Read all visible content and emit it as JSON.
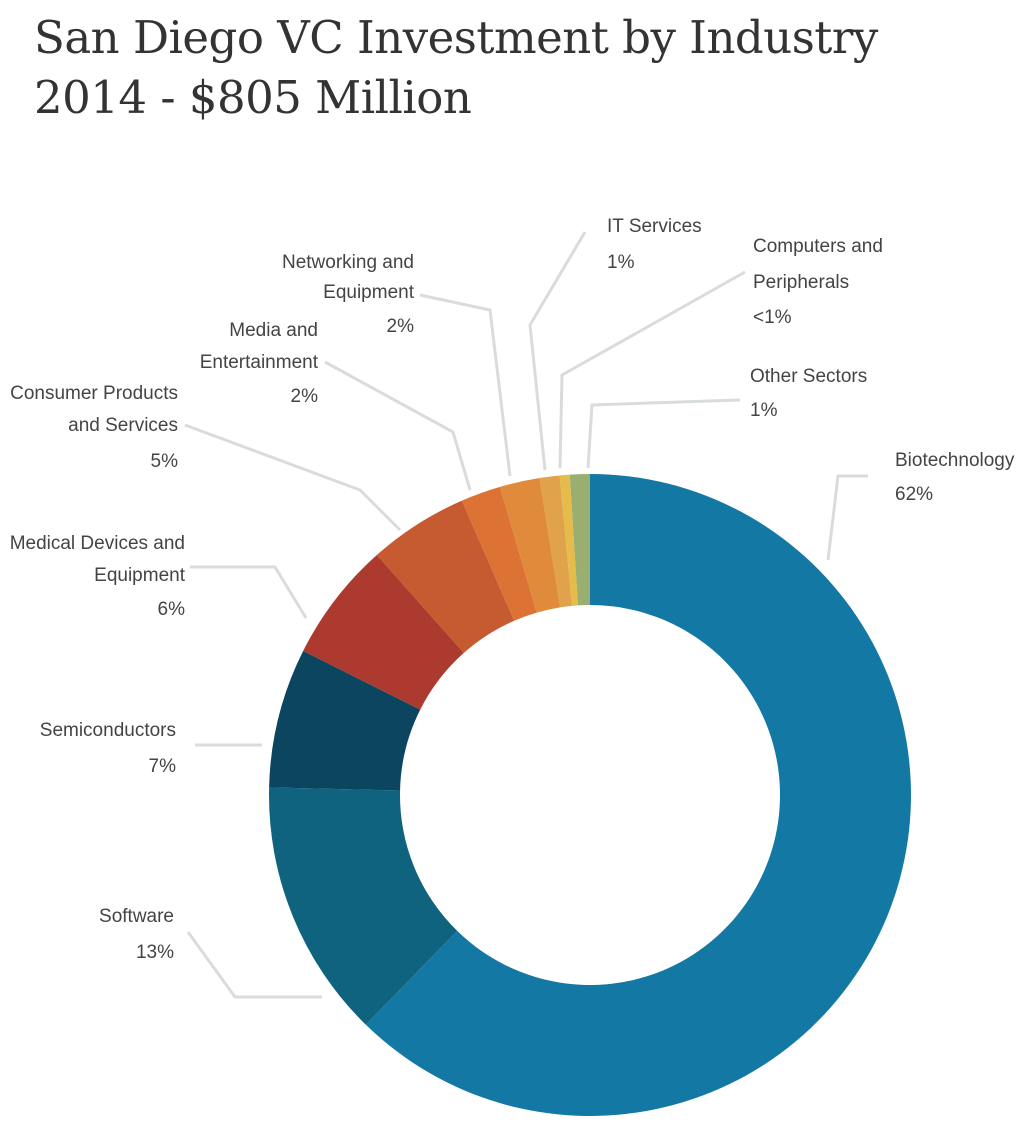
{
  "chart_data": {
    "type": "pie",
    "subtype": "donut",
    "title": [
      "San Diego VC Investment by Industry",
      "2014 - $805 Million"
    ],
    "slices": [
      {
        "label": [
          "Biotechnology"
        ],
        "pct_label": "62%",
        "value": 62,
        "color": "#1478a5"
      },
      {
        "label": [
          "Software"
        ],
        "pct_label": "13%",
        "value": 13,
        "color": "#10637f"
      },
      {
        "label": [
          "Semiconductors"
        ],
        "pct_label": "7%",
        "value": 7,
        "color": "#0b4560"
      },
      {
        "label": [
          "Medical Devices and",
          "Equipment"
        ],
        "pct_label": "6%",
        "value": 6,
        "color": "#ad3a2f"
      },
      {
        "label": [
          "Consumer Products",
          "and Services"
        ],
        "pct_label": "5%",
        "value": 5,
        "color": "#c65a30"
      },
      {
        "label": [
          "Media and",
          "Entertainment"
        ],
        "pct_label": "2%",
        "value": 2,
        "color": "#dc7233"
      },
      {
        "label": [
          "Networking and",
          "Equipment"
        ],
        "pct_label": "2%",
        "value": 2,
        "color": "#e08a3c"
      },
      {
        "label": [
          "IT Services"
        ],
        "pct_label": "1%",
        "value": 1,
        "color": "#e0a24a"
      },
      {
        "label": [
          "Computers and",
          "Peripherals"
        ],
        "pct_label": "<1%",
        "value": 0.5,
        "color": "#e5bb4a"
      },
      {
        "label": [
          "Other Sectors"
        ],
        "pct_label": "1%",
        "value": 1,
        "color": "#9aae72"
      }
    ],
    "leader_line_color": "#d9dcdc",
    "legend": "none"
  }
}
